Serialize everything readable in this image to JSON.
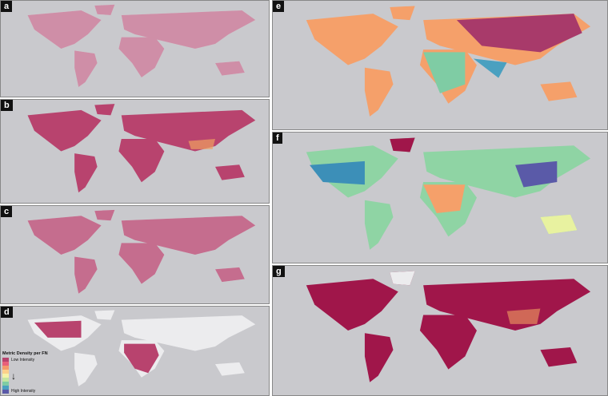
{
  "panels": [
    {
      "label": "a"
    },
    {
      "label": "b"
    },
    {
      "label": "c"
    },
    {
      "label": "d"
    },
    {
      "label": "e"
    },
    {
      "label": "f"
    },
    {
      "label": "g"
    }
  ],
  "legend": {
    "title": "Metric Density per FN",
    "low": "Low Intensity",
    "high": "High Intensity"
  }
}
